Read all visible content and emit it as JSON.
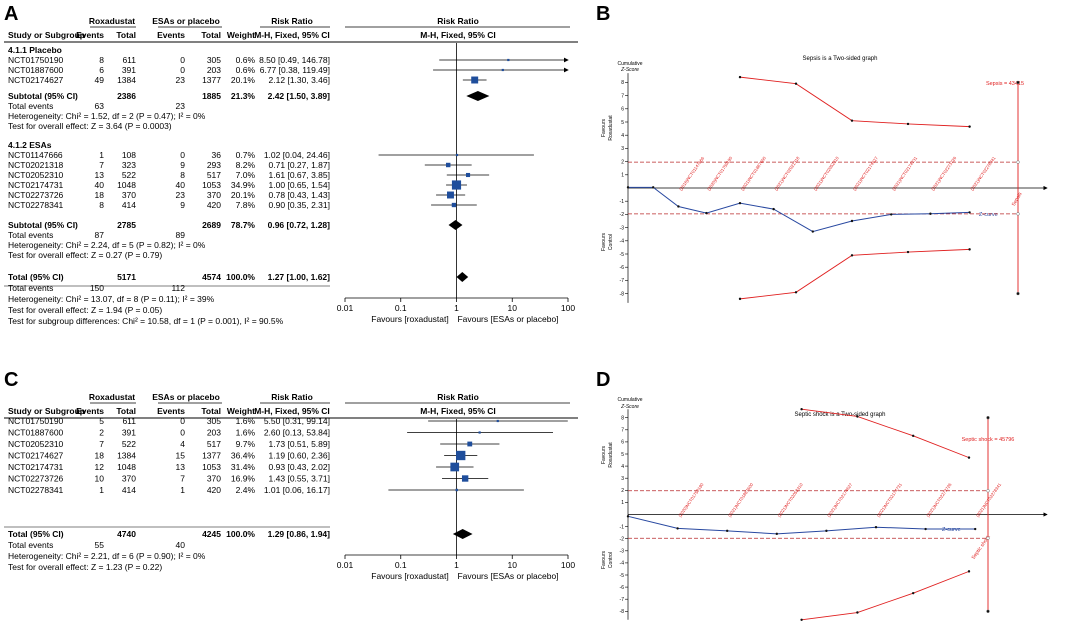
{
  "figure": {
    "panel_labels": [
      "A",
      "B",
      "C",
      "D"
    ],
    "panel_a": {
      "group_headers": {
        "roxa": "Roxadustat",
        "esa": "ESAs or placebo",
        "rr": "Risk Ratio",
        "rr_plot": "Risk Ratio"
      },
      "col_headers": {
        "study": "Study or Subgroup",
        "events": "Events",
        "total": "Total",
        "events2": "Events",
        "total2": "Total",
        "weight": "Weight",
        "method": "M-H, Fixed, 95% CI",
        "method_plot": "M-H, Fixed, 95% CI"
      },
      "subgroup1_title": "4.1.1 Placebo",
      "subgroup1_rows": [
        {
          "study": "NCT01750190",
          "e1": "8",
          "t1": "611",
          "e2": "0",
          "t2": "305",
          "w": "0.6%",
          "ci": "8.50 [0.49, 146.78]"
        },
        {
          "study": "NCT01887600",
          "e1": "6",
          "t1": "391",
          "e2": "0",
          "t2": "203",
          "w": "0.6%",
          "ci": "6.77 [0.38, 119.49]"
        },
        {
          "study": "NCT02174627",
          "e1": "49",
          "t1": "1384",
          "e2": "23",
          "t2": "1377",
          "w": "20.1%",
          "ci": "2.12 [1.30, 3.46]"
        }
      ],
      "subgroup1_subtotal": {
        "label": "Subtotal (95% CI)",
        "t1": "2386",
        "t2": "1885",
        "w": "21.3%",
        "ci": "2.42 [1.50, 3.89]"
      },
      "subgroup1_events": {
        "label": "Total events",
        "e1": "63",
        "e2": "23"
      },
      "subgroup1_het": "Heterogeneity: Chi² = 1.52, df = 2 (P = 0.47); I² = 0%",
      "subgroup1_test": "Test for overall effect: Z = 3.64 (P = 0.0003)",
      "subgroup2_title": "4.1.2 ESAs",
      "subgroup2_rows": [
        {
          "study": "NCT01147666",
          "e1": "1",
          "t1": "108",
          "e2": "0",
          "t2": "36",
          "w": "0.7%",
          "ci": "1.02 [0.04, 24.46]"
        },
        {
          "study": "NCT02021318",
          "e1": "7",
          "t1": "323",
          "e2": "9",
          "t2": "293",
          "w": "8.2%",
          "ci": "0.71 [0.27, 1.87]"
        },
        {
          "study": "NCT02052310",
          "e1": "13",
          "t1": "522",
          "e2": "8",
          "t2": "517",
          "w": "7.0%",
          "ci": "1.61 [0.67, 3.85]"
        },
        {
          "study": "NCT02174731",
          "e1": "40",
          "t1": "1048",
          "e2": "40",
          "t2": "1053",
          "w": "34.9%",
          "ci": "1.00 [0.65, 1.54]"
        },
        {
          "study": "NCT02273726",
          "e1": "18",
          "t1": "370",
          "e2": "23",
          "t2": "370",
          "w": "20.1%",
          "ci": "0.78 [0.43, 1.43]"
        },
        {
          "study": "NCT02278341",
          "e1": "8",
          "t1": "414",
          "e2": "9",
          "t2": "420",
          "w": "7.8%",
          "ci": "0.90 [0.35, 2.31]"
        }
      ],
      "subgroup2_subtotal": {
        "label": "Subtotal (95% CI)",
        "t1": "2785",
        "t2": "2689",
        "w": "78.7%",
        "ci": "0.96 [0.72, 1.28]"
      },
      "subgroup2_events": {
        "label": "Total events",
        "e1": "87",
        "e2": "89"
      },
      "subgroup2_het": "Heterogeneity: Chi² = 2.24, df = 5 (P = 0.82); I² = 0%",
      "subgroup2_test": "Test for overall effect: Z = 0.27 (P = 0.79)",
      "total": {
        "label": "Total (95% CI)",
        "t1": "5171",
        "t2": "4574",
        "w": "100.0%",
        "ci": "1.27 [1.00, 1.62]"
      },
      "total_events": {
        "label": "Total events",
        "e1": "150",
        "e2": "112"
      },
      "het": "Heterogeneity: Chi² = 13.07, df = 8 (P = 0.11); I² = 39%",
      "overall_test": "Test for overall effect: Z = 1.94 (P = 0.05)",
      "subgroup_test": "Test for subgroup differences: Chi² = 10.58, df = 1 (P = 0.001), I² = 90.5%",
      "axis_ticks": [
        "0.01",
        "0.1",
        "1",
        "10",
        "100"
      ],
      "favours_left": "Favours [roxadustat]",
      "favours_right": "Favours [ESAs or placebo]"
    },
    "panel_c": {
      "group_headers": {
        "roxa": "Roxadustat",
        "esa": "ESAs or placebo",
        "rr": "Risk Ratio",
        "rr_plot": "Risk Ratio"
      },
      "col_headers": {
        "study": "Study or Subgroup",
        "events": "Events",
        "total": "Total",
        "events2": "Events",
        "total2": "Total",
        "weight": "Weight",
        "method": "M-H, Fixed, 95% CI",
        "method_plot": "M-H, Fixed, 95% CI"
      },
      "rows": [
        {
          "study": "NCT01750190",
          "e1": "5",
          "t1": "611",
          "e2": "0",
          "t2": "305",
          "w": "1.6%",
          "ci": "5.50 [0.31, 99.14]"
        },
        {
          "study": "NCT01887600",
          "e1": "2",
          "t1": "391",
          "e2": "0",
          "t2": "203",
          "w": "1.6%",
          "ci": "2.60 [0.13, 53.84]"
        },
        {
          "study": "NCT02052310",
          "e1": "7",
          "t1": "522",
          "e2": "4",
          "t2": "517",
          "w": "9.7%",
          "ci": "1.73 [0.51, 5.89]"
        },
        {
          "study": "NCT02174627",
          "e1": "18",
          "t1": "1384",
          "e2": "15",
          "t2": "1377",
          "w": "36.4%",
          "ci": "1.19 [0.60, 2.36]"
        },
        {
          "study": "NCT02174731",
          "e1": "12",
          "t1": "1048",
          "e2": "13",
          "t2": "1053",
          "w": "31.4%",
          "ci": "0.93 [0.43, 2.02]"
        },
        {
          "study": "NCT02273726",
          "e1": "10",
          "t1": "370",
          "e2": "7",
          "t2": "370",
          "w": "16.9%",
          "ci": "1.43 [0.55, 3.71]"
        },
        {
          "study": "NCT02278341",
          "e1": "1",
          "t1": "414",
          "e2": "1",
          "t2": "420",
          "w": "2.4%",
          "ci": "1.01 [0.06, 16.17]"
        }
      ],
      "total": {
        "label": "Total (95% CI)",
        "t1": "4740",
        "t2": "4245",
        "w": "100.0%",
        "ci": "1.29 [0.86, 1.94]"
      },
      "total_events": {
        "label": "Total events",
        "e1": "55",
        "e2": "40"
      },
      "het": "Heterogeneity: Chi² = 2.21, df = 6 (P = 0.90); I² = 0%",
      "overall_test": "Test for overall effect: Z = 1.23 (P = 0.22)",
      "axis_ticks": [
        "0.01",
        "0.1",
        "1",
        "10",
        "100"
      ],
      "favours_left": "Favours [roxadustat]",
      "favours_right": "Favours [ESAs or placebo]"
    },
    "panel_b": {
      "title": "Sepsis is a Two-sided graph",
      "ylabel_1": "Cumulative",
      "ylabel_2": "Z-Score",
      "yticks": [
        "8",
        "7",
        "6",
        "5",
        "4",
        "3",
        "2",
        "1",
        "-1",
        "-2",
        "-3",
        "-4",
        "-5",
        "-6",
        "-7",
        "-8"
      ],
      "favours_top_1": "Favours",
      "favours_top_2": "Roxadustat",
      "favours_bottom_1": "Favours",
      "favours_bottom_2": "Control",
      "ris_label": "Sepsis = 43415",
      "z_curve_label": "Z-curve",
      "end_label": "Sepsis",
      "x_labels": [
        "(2016)NCT01147666",
        "(2020)NCT01750190",
        "(2021)NCT01887600",
        "(2021)NCT02021318",
        "(2021)NCT02052310",
        "(2021)NCT02174627",
        "(2021)NCT02174731",
        "(2021)NCT02273726",
        "(2021)NCT02278341"
      ]
    },
    "panel_d": {
      "title": "Septic shock is a Two-sided graph",
      "ylabel_1": "Cumulative",
      "ylabel_2": "Z-Score",
      "yticks": [
        "8",
        "7",
        "6",
        "5",
        "4",
        "3",
        "2",
        "1",
        "-1",
        "-2",
        "-3",
        "-4",
        "-5",
        "-6",
        "-7",
        "-8"
      ],
      "favours_top_1": "Favours",
      "favours_top_2": "Roxadustat",
      "favours_bottom_1": "Favours",
      "favours_bottom_2": "Control",
      "ris_label": "Septic shock = 45796",
      "z_curve_label": "Z-curve",
      "end_label": "Septic shock",
      "x_labels": [
        "(2020)NCT01750190",
        "(2021)NCT01887600",
        "(2021)NCT02052310",
        "(2021)NCT02174627",
        "(2021)NCT02174731",
        "(2021)NCT02273726",
        "(2021)NCT02278341"
      ]
    },
    "colors": {
      "ink": "#000000",
      "marker": "#1f4e9c",
      "boundary": "#e02020",
      "zcurve": "#2848a0",
      "dash": "#b8282a"
    }
  },
  "chart_data": [
    {
      "type": "scatter",
      "subtype": "forest",
      "title": "Sepsis: Roxadustat vs ESAs or placebo",
      "xlabel": "Risk Ratio (M-H, Fixed, 95% CI)",
      "xscale": "log",
      "xlim": [
        0.01,
        100
      ],
      "series": [
        {
          "name": "NCT01750190",
          "group": "4.1.1 Placebo",
          "rr": 8.5,
          "lo": 0.49,
          "hi": 146.78,
          "weight": 0.6
        },
        {
          "name": "NCT01887600",
          "group": "4.1.1 Placebo",
          "rr": 6.77,
          "lo": 0.38,
          "hi": 119.49,
          "weight": 0.6
        },
        {
          "name": "NCT02174627",
          "group": "4.1.1 Placebo",
          "rr": 2.12,
          "lo": 1.3,
          "hi": 3.46,
          "weight": 20.1
        },
        {
          "name": "Subtotal (95% CI)",
          "group": "4.1.1 Placebo",
          "rr": 2.42,
          "lo": 1.5,
          "hi": 3.89,
          "weight": 21.3,
          "diamond": true
        },
        {
          "name": "NCT01147666",
          "group": "4.1.2 ESAs",
          "rr": 1.02,
          "lo": 0.04,
          "hi": 24.46,
          "weight": 0.7
        },
        {
          "name": "NCT02021318",
          "group": "4.1.2 ESAs",
          "rr": 0.71,
          "lo": 0.27,
          "hi": 1.87,
          "weight": 8.2
        },
        {
          "name": "NCT02052310",
          "group": "4.1.2 ESAs",
          "rr": 1.61,
          "lo": 0.67,
          "hi": 3.85,
          "weight": 7.0
        },
        {
          "name": "NCT02174731",
          "group": "4.1.2 ESAs",
          "rr": 1.0,
          "lo": 0.65,
          "hi": 1.54,
          "weight": 34.9
        },
        {
          "name": "NCT02273726",
          "group": "4.1.2 ESAs",
          "rr": 0.78,
          "lo": 0.43,
          "hi": 1.43,
          "weight": 20.1
        },
        {
          "name": "NCT02278341",
          "group": "4.1.2 ESAs",
          "rr": 0.9,
          "lo": 0.35,
          "hi": 2.31,
          "weight": 7.8
        },
        {
          "name": "Subtotal (95% CI)",
          "group": "4.1.2 ESAs",
          "rr": 0.96,
          "lo": 0.72,
          "hi": 1.28,
          "weight": 78.7,
          "diamond": true
        },
        {
          "name": "Total (95% CI)",
          "group": "total",
          "rr": 1.27,
          "lo": 1.0,
          "hi": 1.62,
          "weight": 100.0,
          "diamond": true
        }
      ]
    },
    {
      "type": "line",
      "subtype": "trial-sequential-analysis",
      "title": "Sepsis is a Two-sided graph",
      "ylabel": "Cumulative Z-Score",
      "ylim": [
        -8,
        8
      ],
      "information_fraction": [
        0,
        0.045,
        0.09,
        0.14,
        0.2,
        0.26,
        0.33,
        0.4,
        0.47,
        0.54,
        0.61
      ],
      "series": [
        {
          "name": "Z-curve",
          "values": [
            0.05,
            0.05,
            -1.4,
            -1.9,
            -1.15,
            -1.6,
            -3.3,
            -2.5,
            -2.0,
            -1.95,
            -1.85
          ]
        },
        {
          "name": "Upper boundary",
          "x": [
            0.2,
            0.3,
            0.4,
            0.5,
            0.61
          ],
          "values": [
            8.4,
            7.9,
            5.1,
            4.85,
            4.65
          ]
        },
        {
          "name": "Lower boundary",
          "x": [
            0.2,
            0.3,
            0.4,
            0.5,
            0.61
          ],
          "values": [
            -8.4,
            -7.9,
            -5.1,
            -4.85,
            -4.65
          ]
        },
        {
          "name": "Conventional boundary",
          "values": [
            1.96,
            -1.96
          ]
        }
      ],
      "required_information_size": "Sepsis = 43415"
    },
    {
      "type": "scatter",
      "subtype": "forest",
      "title": "Septic shock: Roxadustat vs ESAs or placebo",
      "xlabel": "Risk Ratio (M-H, Fixed, 95% CI)",
      "xscale": "log",
      "xlim": [
        0.01,
        100
      ],
      "series": [
        {
          "name": "NCT01750190",
          "rr": 5.5,
          "lo": 0.31,
          "hi": 99.14,
          "weight": 1.6
        },
        {
          "name": "NCT01887600",
          "rr": 2.6,
          "lo": 0.13,
          "hi": 53.84,
          "weight": 1.6
        },
        {
          "name": "NCT02052310",
          "rr": 1.73,
          "lo": 0.51,
          "hi": 5.89,
          "weight": 9.7
        },
        {
          "name": "NCT02174627",
          "rr": 1.19,
          "lo": 0.6,
          "hi": 2.36,
          "weight": 36.4
        },
        {
          "name": "NCT02174731",
          "rr": 0.93,
          "lo": 0.43,
          "hi": 2.02,
          "weight": 31.4
        },
        {
          "name": "NCT02273726",
          "rr": 1.43,
          "lo": 0.55,
          "hi": 3.71,
          "weight": 16.9
        },
        {
          "name": "NCT02278341",
          "rr": 1.01,
          "lo": 0.06,
          "hi": 16.17,
          "weight": 2.4
        },
        {
          "name": "Total (95% CI)",
          "rr": 1.29,
          "lo": 0.86,
          "hi": 1.94,
          "weight": 100.0,
          "diamond": true
        }
      ]
    },
    {
      "type": "line",
      "subtype": "trial-sequential-analysis",
      "title": "Septic shock is a Two-sided graph",
      "ylabel": "Cumulative Z-Score",
      "ylim": [
        -8,
        8
      ],
      "information_fraction": [
        0,
        0.08,
        0.16,
        0.24,
        0.32,
        0.4,
        0.48,
        0.56
      ],
      "series": [
        {
          "name": "Z-curve",
          "values": [
            -0.15,
            -1.15,
            -1.35,
            -1.6,
            -1.35,
            -1.05,
            -1.2,
            -1.2
          ]
        },
        {
          "name": "Upper boundary",
          "x": [
            0.28,
            0.37,
            0.46,
            0.55
          ],
          "values": [
            8.7,
            8.1,
            6.5,
            4.7
          ]
        },
        {
          "name": "Lower boundary",
          "x": [
            0.28,
            0.37,
            0.46,
            0.55
          ],
          "values": [
            -8.7,
            -8.1,
            -6.5,
            -4.7
          ]
        },
        {
          "name": "Conventional boundary",
          "values": [
            1.96,
            -1.96
          ]
        }
      ],
      "required_information_size": "Septic shock = 45796"
    }
  ]
}
